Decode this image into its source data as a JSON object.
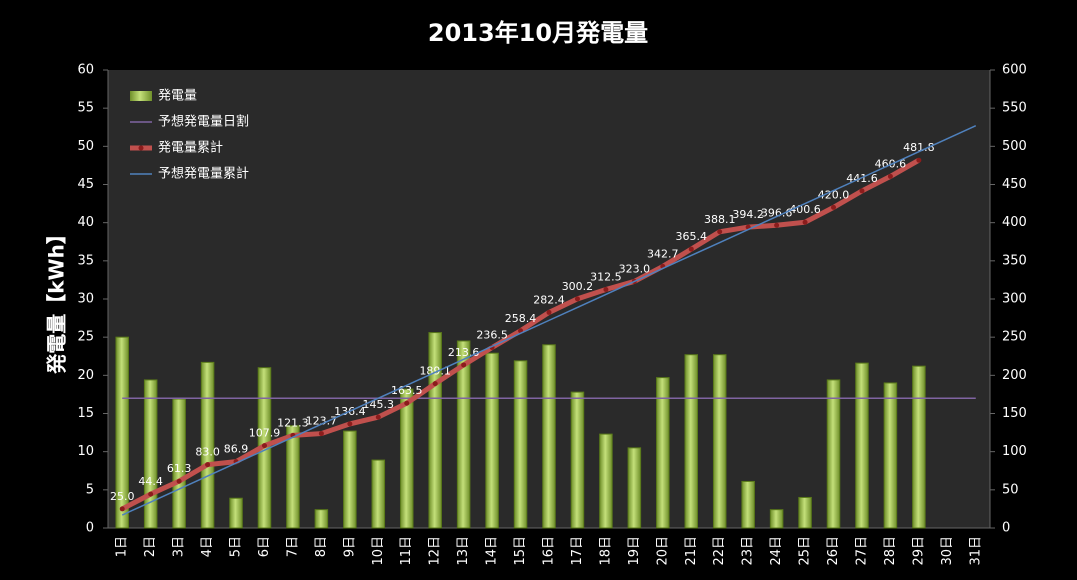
{
  "chart_data": {
    "type": "bar",
    "title": "2013年10月発電量",
    "y_label": "発電量【kWh】",
    "categories": [
      "1日",
      "2日",
      "3日",
      "4日",
      "5日",
      "6日",
      "7日",
      "8日",
      "9日",
      "10日",
      "11日",
      "12日",
      "13日",
      "14日",
      "15日",
      "16日",
      "17日",
      "18日",
      "19日",
      "20日",
      "21日",
      "22日",
      "23日",
      "24日",
      "25日",
      "26日",
      "27日",
      "28日",
      "29日",
      "30日",
      "31日"
    ],
    "ylim": [
      0,
      60
    ],
    "yticks": [
      0,
      5,
      10,
      15,
      20,
      25,
      30,
      35,
      40,
      45,
      50,
      55,
      60
    ],
    "y2lim": [
      0,
      600
    ],
    "y2ticks": [
      0,
      50,
      100,
      150,
      200,
      250,
      300,
      350,
      400,
      450,
      500,
      550,
      600
    ],
    "grid": false,
    "legend": "upper-left",
    "series": [
      {
        "name": "発電量",
        "type": "bar",
        "color": "#9bbb59",
        "values": [
          25.0,
          19.4,
          16.9,
          21.7,
          3.9,
          21.0,
          13.4,
          2.4,
          12.7,
          8.9,
          18.2,
          25.6,
          24.5,
          22.9,
          21.9,
          24.0,
          17.8,
          12.3,
          10.5,
          19.7,
          22.7,
          22.7,
          6.1,
          2.4,
          4.0,
          19.4,
          21.6,
          19.0,
          21.2,
          null,
          null
        ]
      },
      {
        "name": "予想発電量日割",
        "type": "line",
        "color": "#8064a2",
        "values": [
          17,
          17,
          17,
          17,
          17,
          17,
          17,
          17,
          17,
          17,
          17,
          17,
          17,
          17,
          17,
          17,
          17,
          17,
          17,
          17,
          17,
          17,
          17,
          17,
          17,
          17,
          17,
          17,
          17,
          17,
          17
        ]
      },
      {
        "name": "発電量累計",
        "type": "line",
        "axis": "y2",
        "color": "#c0504d",
        "markers": true,
        "values": [
          25.0,
          44.4,
          61.3,
          83.0,
          86.9,
          107.9,
          121.3,
          123.7,
          136.4,
          145.3,
          163.5,
          189.1,
          213.6,
          236.5,
          258.4,
          282.4,
          300.2,
          312.5,
          323.0,
          342.7,
          365.4,
          388.1,
          394.2,
          396.6,
          400.6,
          420.0,
          441.6,
          460.6,
          481.8,
          null,
          null
        ],
        "value_labels": [
          "25.0",
          "44.4",
          "61.3",
          "83.0",
          "86.9",
          "107.9",
          "121.3",
          "123.7",
          "136.4",
          "145.3",
          "163.5",
          "189.1",
          "213.6",
          "236.5",
          "258.4",
          "282.4",
          "300.2",
          "312.5",
          "323.0",
          "342.7",
          "365.4",
          "388.1",
          "394.2",
          "396.6",
          "400.6",
          "420.0",
          "441.6",
          "460.6",
          "481.8",
          null,
          null
        ]
      },
      {
        "name": "予想発電量累計",
        "type": "line",
        "axis": "y2",
        "color": "#4f81bd",
        "values": [
          17,
          34,
          51,
          68,
          85,
          102,
          119,
          136,
          153,
          170,
          187,
          204,
          221,
          238,
          255,
          272,
          289,
          306,
          323,
          340,
          357,
          374,
          391,
          408,
          425,
          442,
          459,
          476,
          493,
          510,
          527
        ]
      }
    ]
  }
}
